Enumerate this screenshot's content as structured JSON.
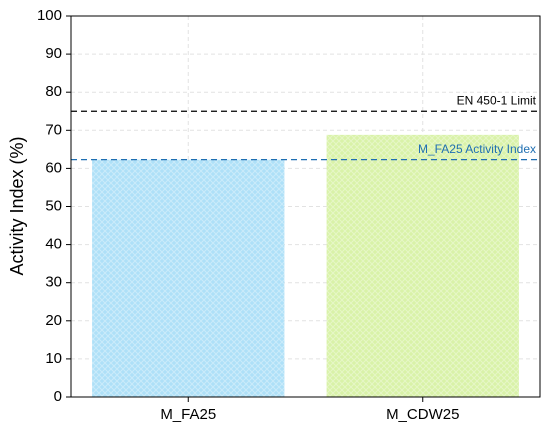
{
  "chart_data": {
    "type": "bar",
    "y_label": "Activity Index (%)",
    "categories": [
      "M_FA25",
      "M_CDW25"
    ],
    "values": [
      62.3,
      68.8
    ],
    "colors": [
      "#aee0f8",
      "#d9f2a8"
    ],
    "ylim": [
      0,
      100
    ],
    "yticks": [
      0,
      10,
      20,
      30,
      40,
      50,
      60,
      70,
      80,
      90,
      100
    ],
    "grid": true,
    "reference_lines": [
      {
        "label": "EN 450-1 Limit",
        "value": 75,
        "color": "#000000"
      },
      {
        "label": "M_FA25 Activity Index",
        "value": 62.3,
        "color": "#1f6fb2"
      }
    ]
  }
}
